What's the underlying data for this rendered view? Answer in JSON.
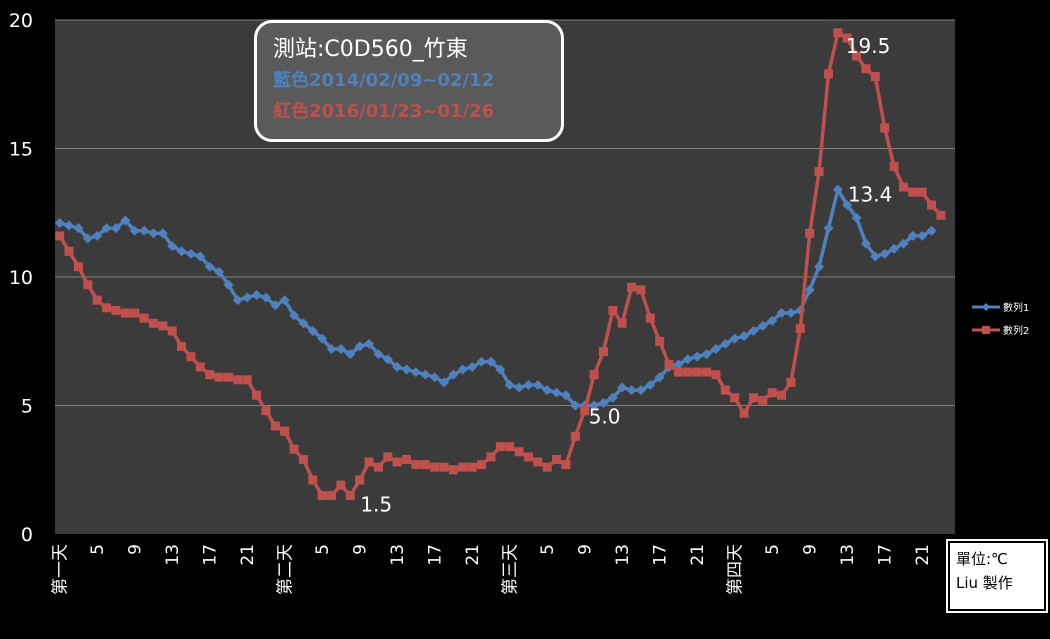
{
  "chart_data": {
    "type": "line",
    "ylim": [
      0,
      20
    ],
    "yticks": [
      0,
      5,
      10,
      15,
      20
    ],
    "grid": true,
    "legend_position": "right",
    "x_count": 96,
    "x_tick_labels": [
      {
        "i": 0,
        "label": "第一天"
      },
      {
        "i": 4,
        "label": "5"
      },
      {
        "i": 8,
        "label": "9"
      },
      {
        "i": 12,
        "label": "13"
      },
      {
        "i": 16,
        "label": "17"
      },
      {
        "i": 20,
        "label": "21"
      },
      {
        "i": 24,
        "label": "第二天"
      },
      {
        "i": 28,
        "label": "5"
      },
      {
        "i": 32,
        "label": "9"
      },
      {
        "i": 36,
        "label": "13"
      },
      {
        "i": 40,
        "label": "17"
      },
      {
        "i": 44,
        "label": "21"
      },
      {
        "i": 48,
        "label": "第三天"
      },
      {
        "i": 52,
        "label": "5"
      },
      {
        "i": 56,
        "label": "9"
      },
      {
        "i": 60,
        "label": "13"
      },
      {
        "i": 64,
        "label": "17"
      },
      {
        "i": 68,
        "label": "21"
      },
      {
        "i": 72,
        "label": "第四天"
      },
      {
        "i": 76,
        "label": "5"
      },
      {
        "i": 80,
        "label": "9"
      },
      {
        "i": 84,
        "label": "13"
      },
      {
        "i": 88,
        "label": "17"
      },
      {
        "i": 92,
        "label": "21"
      }
    ],
    "series": [
      {
        "name": "數列1",
        "color": "#4f81bd",
        "values": [
          12.1,
          12.0,
          11.9,
          11.5,
          11.6,
          11.9,
          11.9,
          12.2,
          11.8,
          11.8,
          11.7,
          11.7,
          11.2,
          11.0,
          10.9,
          10.8,
          10.4,
          10.2,
          9.7,
          9.1,
          9.2,
          9.3,
          9.2,
          8.9,
          9.1,
          8.5,
          8.2,
          7.9,
          7.6,
          7.2,
          7.2,
          7.0,
          7.3,
          7.4,
          7.0,
          6.8,
          6.5,
          6.4,
          6.3,
          6.2,
          6.1,
          5.9,
          6.2,
          6.4,
          6.5,
          6.7,
          6.7,
          6.4,
          5.8,
          5.7,
          5.8,
          5.8,
          5.6,
          5.5,
          5.4,
          5.0,
          5.0,
          5.0,
          5.1,
          5.3,
          5.7,
          5.6,
          5.6,
          5.8,
          6.1,
          6.5,
          6.6,
          6.8,
          6.9,
          7.0,
          7.2,
          7.4,
          7.6,
          7.7,
          7.9,
          8.1,
          8.3,
          8.6,
          8.6,
          8.7,
          9.5,
          10.4,
          11.9,
          13.4,
          12.8,
          12.3,
          11.3,
          10.8,
          10.9,
          11.1,
          11.3,
          11.6,
          11.6,
          11.8
        ]
      },
      {
        "name": "數列2",
        "color": "#c0504d",
        "values": [
          11.6,
          11.0,
          10.4,
          9.7,
          9.1,
          8.8,
          8.7,
          8.6,
          8.6,
          8.4,
          8.2,
          8.1,
          7.9,
          7.3,
          6.9,
          6.5,
          6.2,
          6.1,
          6.1,
          6.0,
          6.0,
          5.4,
          4.8,
          4.2,
          4.0,
          3.3,
          2.9,
          2.1,
          1.5,
          1.5,
          1.9,
          1.5,
          2.1,
          2.8,
          2.6,
          3.0,
          2.8,
          2.9,
          2.7,
          2.7,
          2.6,
          2.6,
          2.5,
          2.6,
          2.6,
          2.7,
          3.0,
          3.4,
          3.4,
          3.2,
          3.0,
          2.8,
          2.6,
          2.9,
          2.7,
          3.8,
          4.8,
          6.2,
          7.1,
          8.7,
          8.2,
          9.6,
          9.5,
          8.4,
          7.5,
          6.6,
          6.3,
          6.3,
          6.3,
          6.3,
          6.2,
          5.6,
          5.3,
          4.7,
          5.3,
          5.2,
          5.5,
          5.4,
          5.9,
          8.0,
          11.7,
          14.1,
          17.9,
          19.5,
          19.3,
          18.6,
          18.1,
          17.8,
          15.8,
          14.3,
          13.5,
          13.3,
          13.3,
          12.8,
          12.4
        ]
      }
    ],
    "annotations": [
      {
        "series": 1,
        "i": 83,
        "text": "19.5"
      },
      {
        "series": 0,
        "i": 83,
        "text": "13.4"
      },
      {
        "series": 0,
        "i": 56,
        "text": "5.0"
      },
      {
        "series": 1,
        "i": 31,
        "text": "1.5"
      }
    ]
  },
  "info_box": {
    "station": "測站:C0D560_竹東",
    "blue_line": "藍色2014/02/09~02/12",
    "red_line": "紅色2016/01/23~01/26"
  },
  "unit_box": {
    "unit": "單位:℃",
    "author": "Liu 製作"
  }
}
